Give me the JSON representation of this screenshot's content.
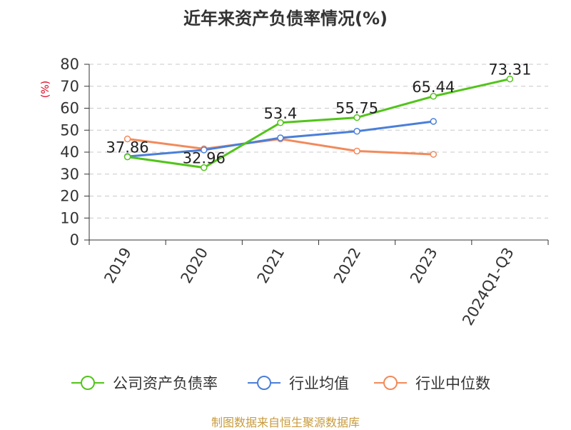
{
  "title": "近年来资产负债率情况(%)",
  "source": "制图数据来自恒生聚源数据库",
  "chart_data": {
    "type": "line",
    "title": "近年来资产负债率情况(%)",
    "ylabel": "(%)",
    "ylim": [
      0,
      80
    ],
    "yticks": [
      0,
      10,
      20,
      30,
      40,
      50,
      60,
      70,
      80
    ],
    "grid": true,
    "legend_position": "bottom",
    "categories": [
      "2019",
      "2020",
      "2021",
      "2022",
      "2023",
      "2024Q1-Q3"
    ],
    "series": [
      {
        "name": "公司资产负债率",
        "color": "#52c41a",
        "labels": true,
        "values": [
          37.86,
          32.96,
          53.4,
          55.75,
          65.44,
          73.31
        ],
        "label_text": [
          "37.86",
          "32.96",
          "53.4",
          "55.75",
          "65.44",
          "73.31"
        ]
      },
      {
        "name": "行业均值",
        "color": "#4a7fd9",
        "labels": false,
        "values": [
          38.0,
          41.0,
          46.5,
          49.5,
          54.0,
          null
        ]
      },
      {
        "name": "行业中位数",
        "color": "#f28a5b",
        "labels": false,
        "values": [
          46.0,
          41.5,
          46.0,
          40.5,
          39.0,
          null
        ]
      }
    ]
  }
}
